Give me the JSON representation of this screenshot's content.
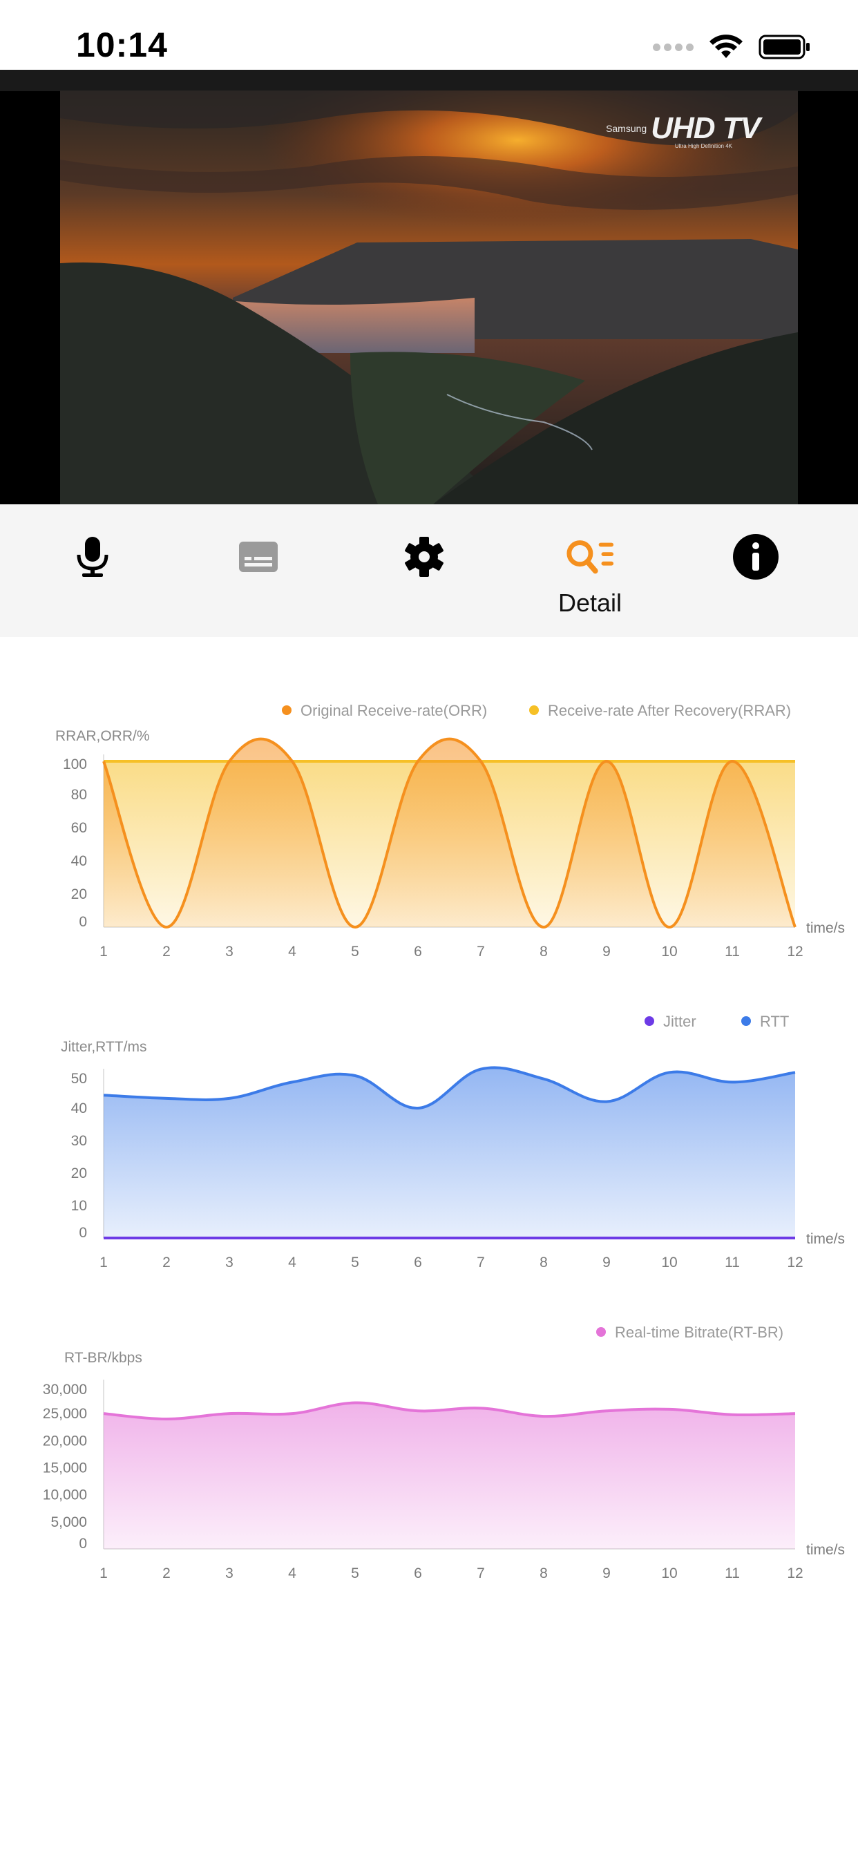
{
  "status_bar": {
    "time": "10:14"
  },
  "video": {
    "logo_brand": "Samsung",
    "logo_main": "UHD TV",
    "logo_sub": "Ultra High Definition 4K"
  },
  "toolbar": {
    "items": [
      {
        "icon": "microphone-icon",
        "label": ""
      },
      {
        "icon": "subtitle-icon",
        "label": ""
      },
      {
        "icon": "gear-icon",
        "label": ""
      },
      {
        "icon": "detail-search-icon",
        "label": "Detail",
        "active": true
      },
      {
        "icon": "info-icon",
        "label": ""
      }
    ],
    "active_color": "#F5901E"
  },
  "chart_data": [
    {
      "type": "area",
      "ylabel": "RRAR,ORR/%",
      "xlabel": "time/s",
      "x": [
        1,
        2,
        3,
        4,
        5,
        6,
        7,
        8,
        9,
        10,
        11,
        12
      ],
      "yticks": [
        0,
        20,
        40,
        60,
        80,
        100
      ],
      "ylim": [
        0,
        100
      ],
      "series": [
        {
          "name": "Original Receive-rate(ORR)",
          "color": "#F5901E",
          "values": [
            100,
            0,
            100,
            100,
            0,
            100,
            100,
            0,
            100,
            0,
            100,
            0
          ]
        },
        {
          "name": "Receive-rate After Recovery(RRAR)",
          "color": "#F6C026",
          "values": [
            100,
            100,
            100,
            100,
            100,
            100,
            100,
            100,
            100,
            100,
            100,
            100
          ]
        }
      ]
    },
    {
      "type": "area",
      "ylabel": "Jitter,RTT/ms",
      "xlabel": "time/s",
      "x": [
        1,
        2,
        3,
        4,
        5,
        6,
        7,
        8,
        9,
        10,
        11,
        12
      ],
      "yticks": [
        0,
        10,
        20,
        30,
        40,
        50
      ],
      "ylim": [
        0,
        50
      ],
      "series": [
        {
          "name": "Jitter",
          "color": "#6D3BE6",
          "values": [
            0,
            0,
            0,
            0,
            0,
            0,
            0,
            0,
            0,
            0,
            0,
            0
          ]
        },
        {
          "name": "RTT",
          "color": "#3C7BE8",
          "values": [
            44,
            43,
            43,
            48,
            50,
            40,
            52,
            49,
            42,
            51,
            48,
            51
          ]
        }
      ]
    },
    {
      "type": "area",
      "ylabel": "RT-BR/kbps",
      "xlabel": "time/s",
      "x": [
        1,
        2,
        3,
        4,
        5,
        6,
        7,
        8,
        9,
        10,
        11,
        12
      ],
      "yticks": [
        "0",
        "5,000",
        "10,000",
        "15,000",
        "20,000",
        "25,000",
        "30,000"
      ],
      "ylim": [
        0,
        30000
      ],
      "series": [
        {
          "name": "Real-time Bitrate(RT-BR)",
          "color": "#E474D8",
          "values": [
            25000,
            24000,
            25000,
            25000,
            27000,
            25500,
            26000,
            24500,
            25500,
            25800,
            24800,
            25000
          ]
        }
      ]
    }
  ]
}
